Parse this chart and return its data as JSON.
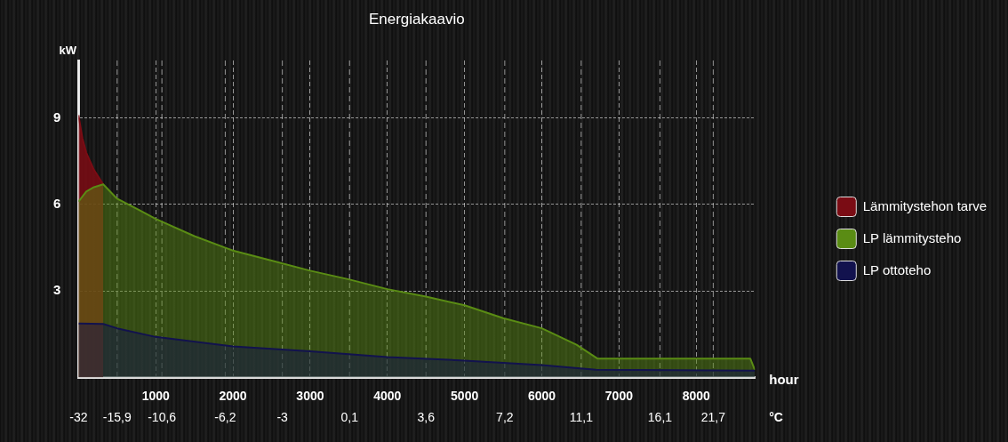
{
  "chart_data": {
    "type": "area",
    "title": "Energiakaavio",
    "ylabel": "kW",
    "xlabel": "hour",
    "annotations": [
      "°C",
      "-32",
      "-15,9",
      "-10,6",
      "-6,2",
      "-3",
      "0,1",
      "3,6",
      "7,2",
      "11,1",
      "16,1",
      "21,7"
    ],
    "ref_lines": [
      {
        "axis": "x",
        "value": 0
      },
      {
        "axis": "x",
        "value": 500,
        "line_style": "dashed"
      },
      {
        "axis": "x",
        "value": 1080,
        "line_style": "dashed"
      },
      {
        "axis": "x",
        "value": 1900,
        "line_style": "dashed"
      },
      {
        "axis": "x",
        "value": 2640,
        "line_style": "dashed"
      },
      {
        "axis": "x",
        "value": 3510,
        "line_style": "dashed"
      },
      {
        "axis": "x",
        "value": 4500,
        "line_style": "dashed"
      },
      {
        "axis": "x",
        "value": 5520,
        "line_style": "dashed"
      },
      {
        "axis": "x",
        "value": 6510,
        "line_style": "dashed"
      },
      {
        "axis": "x",
        "value": 7530,
        "line_style": "dashed"
      },
      {
        "axis": "x",
        "value": 8220,
        "line_style": "dashed"
      }
    ],
    "xlim": [
      0,
      8760
    ],
    "xticks": [
      1000,
      2000,
      3000,
      4000,
      5000,
      6000,
      7000,
      8000
    ],
    "ylim": [
      0,
      11
    ],
    "yticks": [
      3,
      6,
      9
    ],
    "grid": true,
    "legend": "right",
    "marker": "none",
    "series": [
      {
        "name": "Lämmitystehon tarve",
        "color": "#7a0c14",
        "x": [
          0,
          50,
          100,
          200,
          320
        ],
        "values": [
          9.1,
          8.3,
          7.8,
          7.2,
          6.7
        ]
      },
      {
        "name": "LP lämmitysteho",
        "color": "#5a8c14",
        "x": [
          0,
          100,
          200,
          320,
          500,
          790,
          1000,
          1500,
          2000,
          2500,
          3000,
          3500,
          4000,
          4500,
          5000,
          5500,
          6000,
          6450,
          6720,
          8700,
          8760
        ],
        "values": [
          6.1,
          6.45,
          6.6,
          6.7,
          6.2,
          5.8,
          5.5,
          4.9,
          4.4,
          4.05,
          3.7,
          3.4,
          3.06,
          2.8,
          2.5,
          2.05,
          1.7,
          1.13,
          0.65,
          0.65,
          0.25
        ]
      },
      {
        "name": "LP ottoteho",
        "color": "#12124e",
        "x": [
          0,
          320,
          500,
          1000,
          2000,
          3000,
          4000,
          5000,
          6000,
          6700,
          8760
        ],
        "values": [
          1.87,
          1.85,
          1.7,
          1.4,
          1.07,
          0.9,
          0.7,
          0.58,
          0.42,
          0.26,
          0.23
        ]
      }
    ]
  }
}
